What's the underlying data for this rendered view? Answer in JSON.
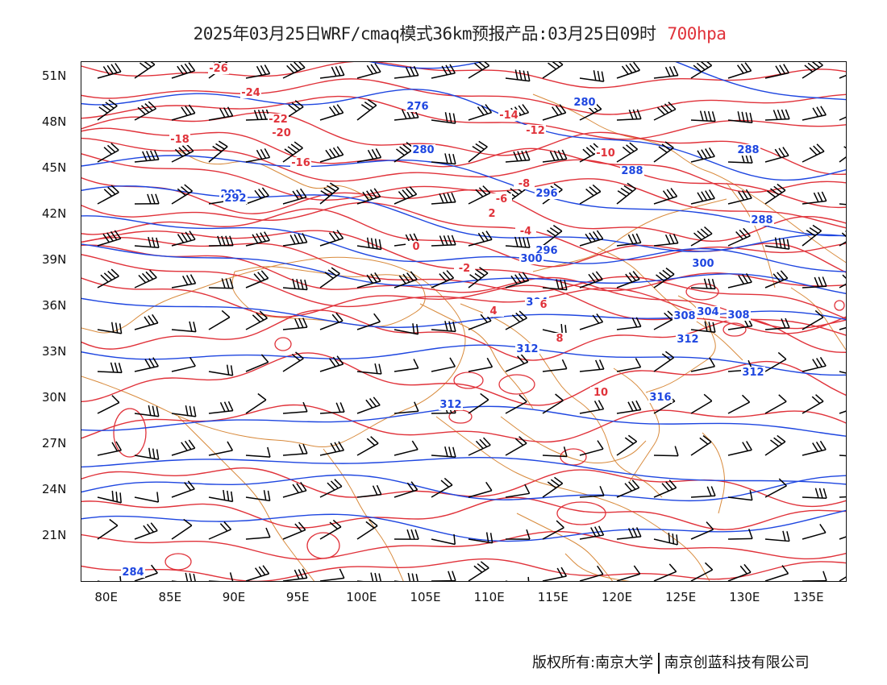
{
  "title": {
    "text": "2025年03月25日WRF/cmaq模式36km预报产品:03月25日09时",
    "level": "700hpa",
    "level_color": "#e0323a"
  },
  "map": {
    "projection": "lat-lon",
    "lon_range": [
      78,
      138
    ],
    "lat_range": [
      18,
      52
    ],
    "x_ticks": [
      "80E",
      "85E",
      "90E",
      "95E",
      "100E",
      "105E",
      "110E",
      "115E",
      "120E",
      "125E",
      "130E",
      "135E"
    ],
    "y_ticks": [
      "51N",
      "48N",
      "45N",
      "42N",
      "39N",
      "36N",
      "33N",
      "30N",
      "27N",
      "24N",
      "21N"
    ],
    "colors": {
      "temperature_contour": "#e0323a",
      "height_contour": "#1e46e0",
      "boundary": "#d88a3c",
      "wind_barb": "#000000"
    },
    "height_labels": [
      "276",
      "280",
      "280",
      "288",
      "292",
      "296",
      "288",
      "292",
      "296",
      "300",
      "300",
      "304",
      "304",
      "308",
      "308",
      "312",
      "312",
      "312",
      "312",
      "316",
      "284",
      "288"
    ],
    "temperature_labels": [
      "-26",
      "-24",
      "-22",
      "-20",
      "-18",
      "-16",
      "-14",
      "-12",
      "-10",
      "-8",
      "-6",
      "-4",
      "-2",
      "0",
      "2",
      "4",
      "6",
      "8",
      "10"
    ],
    "layers": [
      "temperature isotherms (°C)",
      "geopotential height (dagpm)",
      "wind barbs",
      "boundaries"
    ]
  },
  "copyright": {
    "owner": "版权所有:南京大学",
    "partner": "南京创蓝科技有限公司"
  }
}
